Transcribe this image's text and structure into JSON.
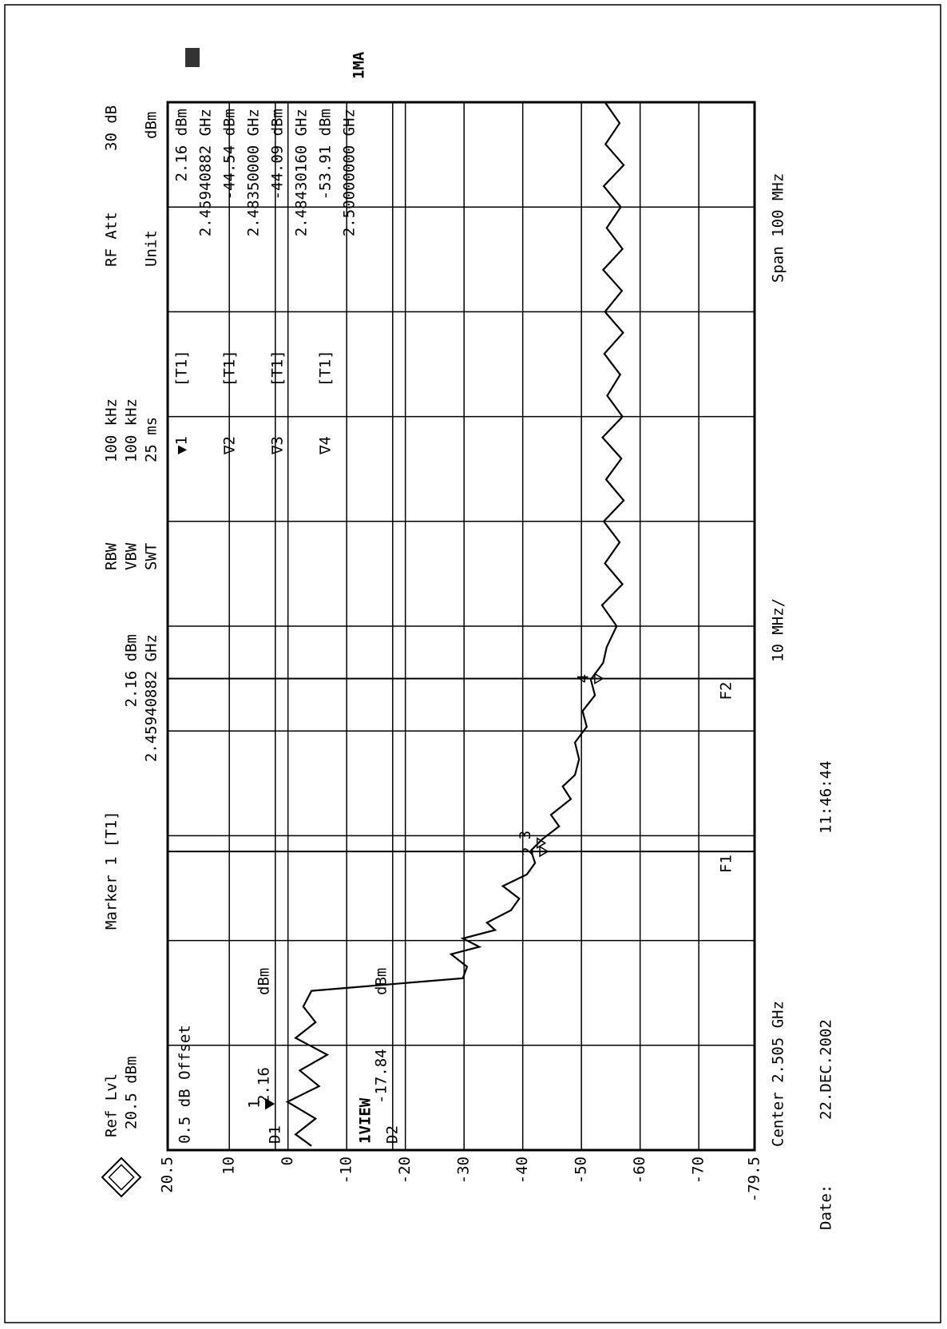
{
  "chart_data": {
    "type": "line",
    "header": {
      "ref_label": "Ref Lvl",
      "ref_value": "20.5 dBm",
      "marker_title": "Marker 1 [T1]",
      "marker_level": "2.16 dBm",
      "marker_freq": "2.45940882 GHz",
      "rbw_label": "RBW",
      "rbw": "100 kHz",
      "vbw_label": "VBW",
      "vbw": "100 kHz",
      "swt_label": "SWT",
      "swt": "25 ms",
      "att_label": "RF Att",
      "att": "30 dB",
      "unit_label": "Unit",
      "unit": "dBm",
      "offset": "0.5 dB Offset",
      "view": "1VIEW",
      "mode": "1MA"
    },
    "footer": {
      "center": "Center 2.505 GHz",
      "div": "10 MHz/",
      "span": "Span 100 MHz",
      "date_label": "Date:",
      "date": "22.DEC.2002",
      "time": "11:46:44"
    },
    "xlim": [
      2.455,
      2.555
    ],
    "ylim": [
      -79.5,
      20.5
    ],
    "yticks": [
      20.5,
      10,
      0,
      -10,
      -20,
      -30,
      -40,
      -50,
      -60,
      -70,
      -79.5
    ],
    "grid": true,
    "color": "#000000",
    "x": [
      2.4554,
      2.4565,
      2.458,
      2.4596,
      2.4611,
      2.4626,
      2.4641,
      2.4657,
      2.4672,
      2.4687,
      2.4702,
      2.4714,
      2.4725,
      2.4737,
      2.4744,
      2.4752,
      2.476,
      2.4767,
      2.4779,
      2.479,
      2.4802,
      2.4813,
      2.4824,
      2.4836,
      2.4847,
      2.4859,
      2.487,
      2.4885,
      2.4897,
      2.4908,
      2.4923,
      2.4939,
      2.4954,
      2.4969,
      2.4984,
      2.4999,
      2.5015,
      2.503,
      2.505,
      2.507,
      2.509,
      2.511,
      2.513,
      2.515,
      2.517,
      2.519,
      2.521,
      2.523,
      2.525,
      2.527,
      2.529,
      2.531,
      2.533,
      2.535,
      2.537,
      2.539,
      2.541,
      2.543,
      2.545,
      2.547,
      2.549,
      2.551,
      2.553,
      2.555
    ],
    "values": [
      -4,
      -1.3,
      -4.7,
      0.1,
      -5.3,
      -2,
      -6.7,
      -1.3,
      -4.7,
      -2.6,
      -4,
      -29.8,
      -30.5,
      -27.8,
      -32.6,
      -29.8,
      -35.3,
      -33.9,
      -38,
      -39.4,
      -36.6,
      -40.7,
      -42.1,
      -41.4,
      -43.4,
      -46.2,
      -44.8,
      -48.2,
      -46.8,
      -48.9,
      -49.6,
      -48.9,
      -50.9,
      -50.2,
      -52.3,
      -51.6,
      -53.7,
      -54.3,
      -56,
      -53.5,
      -57,
      -54,
      -56.5,
      -53.8,
      -57.2,
      -54.2,
      -56.8,
      -53.6,
      -57,
      -54.4,
      -56.6,
      -53.9,
      -57.1,
      -54,
      -56.9,
      -53.7,
      -57,
      -54.3,
      -56.7,
      -53.8,
      -57.2,
      -54.1,
      -56.5,
      -54
    ],
    "markers": [
      {
        "tag": "1",
        "symbol": "▼1",
        "trace": "[T1]",
        "level": 2.16,
        "level_label": "2.16 dBm",
        "freq": 2.45940882,
        "freq_label": "2.45940882 GHz"
      },
      {
        "tag": "2",
        "symbol": "∇2",
        "trace": "[T1]",
        "level": -44.54,
        "level_label": "-44.54 dBm",
        "freq": 2.4835,
        "freq_label": "2.48350000 GHz"
      },
      {
        "tag": "3",
        "symbol": "∇3",
        "trace": "[T1]",
        "level": -44.09,
        "level_label": "-44.09 dBm",
        "freq": 2.4843016,
        "freq_label": "2.48430160 GHz"
      },
      {
        "tag": "4",
        "symbol": "∇4",
        "trace": "[T1]",
        "level": -53.91,
        "level_label": "-53.91 dBm",
        "freq": 2.5,
        "freq_label": "2.50000000 GHz"
      }
    ],
    "display_lines": [
      {
        "name": "D1",
        "value": 2.16,
        "unit": "dBm"
      },
      {
        "name": "D2",
        "value": -17.84,
        "unit": "dBm"
      }
    ],
    "freq_lines": [
      {
        "label": "F1",
        "x": 2.4835
      },
      {
        "label": "F2",
        "x": 2.5
      }
    ]
  }
}
